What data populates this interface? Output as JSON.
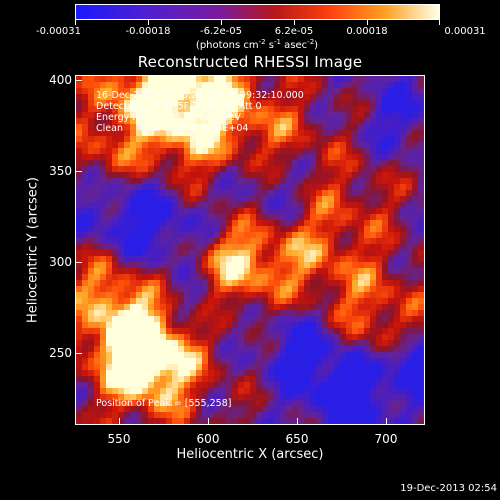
{
  "colorbar": {
    "labels": [
      "-0.00031",
      "-0.00018",
      "-6.2e-05",
      "6.2e-05",
      "0.00018",
      "0.00031"
    ],
    "units_text": "(photons cm",
    "units_exp1": "-2",
    "units_mid": " s",
    "units_exp2": "-1",
    "units_mid2": " asec",
    "units_exp3": "-2",
    "units_end": ")",
    "colors": [
      "#1a1aff",
      "#5a20c8",
      "#8a1a8a",
      "#c81818",
      "#ff5010",
      "#ffb030",
      "#ffffe0"
    ]
  },
  "title": "Reconstructed RHESSI Image",
  "annotations": {
    "time": "16-Dec-2013 09:26:24.000 to 09:32:10.000",
    "detectors": "Detectors: 3F 4F 5F 7F 8F 9F, Att 0",
    "energy": "Energy Range: 25.0 - 50.0 keV",
    "clean": "Clean     Total counts: 1.48E+04",
    "peak": "Position of Peak = [555,258]"
  },
  "chart_data": {
    "type": "heatmap",
    "title": "Reconstructed RHESSI Image",
    "xlabel": "Heliocentric X (arcsec)",
    "ylabel": "Heliocentric Y (arcsec)",
    "xlim": [
      528,
      720
    ],
    "ylim": [
      208,
      404
    ],
    "xticks": [
      "550",
      "600",
      "650",
      "700"
    ],
    "yticks": [
      "250",
      "300",
      "350",
      "400"
    ],
    "colorbar_range": [
      -0.00031,
      0.00031
    ],
    "peak_position": [
      555,
      258
    ]
  },
  "footer": "19-Dec-2013 02:54"
}
